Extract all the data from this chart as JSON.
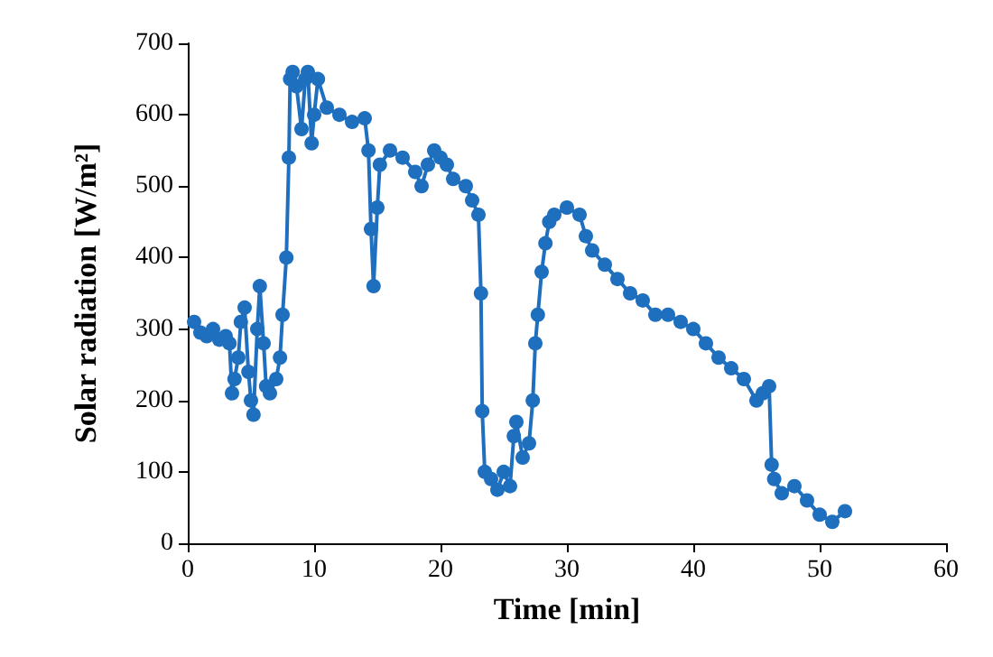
{
  "chart_data": {
    "type": "line",
    "xlabel": "Time [min]",
    "ylabel": "Solar radiation [W/m²]",
    "xlim": [
      0,
      60
    ],
    "xticks": [
      0,
      10,
      20,
      30,
      40,
      50,
      60
    ],
    "ylim": [
      0,
      700
    ],
    "yticks": [
      0,
      100,
      200,
      300,
      400,
      500,
      600,
      700
    ],
    "grid": false,
    "marker": "circle",
    "line_style": "solid",
    "series": [
      {
        "color": "#1f6fbf",
        "x": [
          0.5,
          1,
          1.5,
          2,
          2.5,
          3,
          3.3,
          3.5,
          3.7,
          4,
          4.2,
          4.5,
          4.8,
          5,
          5.2,
          5.5,
          5.7,
          6,
          6.2,
          6.5,
          7,
          7.3,
          7.5,
          7.8,
          8,
          8.1,
          8.3,
          8.6,
          9,
          9.3,
          9.5,
          9.8,
          10,
          10.3,
          11,
          12,
          13,
          14,
          14.3,
          14.5,
          14.7,
          15,
          15.2,
          16,
          17,
          18,
          18.5,
          19,
          19.5,
          20,
          20.5,
          21,
          22,
          22.5,
          23,
          23.2,
          23.3,
          23.5,
          24,
          24.5,
          25,
          25.5,
          25.8,
          26,
          26.5,
          27,
          27.3,
          27.5,
          27.7,
          28,
          28.3,
          28.6,
          29,
          30,
          31,
          31.5,
          32,
          33,
          34,
          35,
          36,
          37,
          38,
          39,
          40,
          41,
          42,
          43,
          44,
          45,
          45.5,
          46,
          46.2,
          46.4,
          47,
          48,
          49,
          50,
          51,
          52
        ],
        "values": [
          310,
          295,
          290,
          300,
          285,
          290,
          280,
          210,
          230,
          260,
          310,
          330,
          240,
          200,
          180,
          300,
          360,
          280,
          220,
          210,
          230,
          260,
          320,
          400,
          540,
          650,
          660,
          640,
          580,
          650,
          660,
          560,
          600,
          650,
          610,
          600,
          590,
          595,
          550,
          440,
          360,
          470,
          530,
          550,
          540,
          520,
          500,
          530,
          550,
          540,
          530,
          510,
          500,
          480,
          460,
          350,
          185,
          100,
          90,
          75,
          100,
          80,
          150,
          170,
          120,
          140,
          200,
          280,
          320,
          380,
          420,
          450,
          460,
          470,
          460,
          430,
          410,
          390,
          370,
          350,
          340,
          320,
          320,
          310,
          300,
          280,
          260,
          245,
          230,
          200,
          210,
          220,
          110,
          90,
          70,
          80,
          60,
          40,
          30,
          45
        ]
      }
    ]
  }
}
